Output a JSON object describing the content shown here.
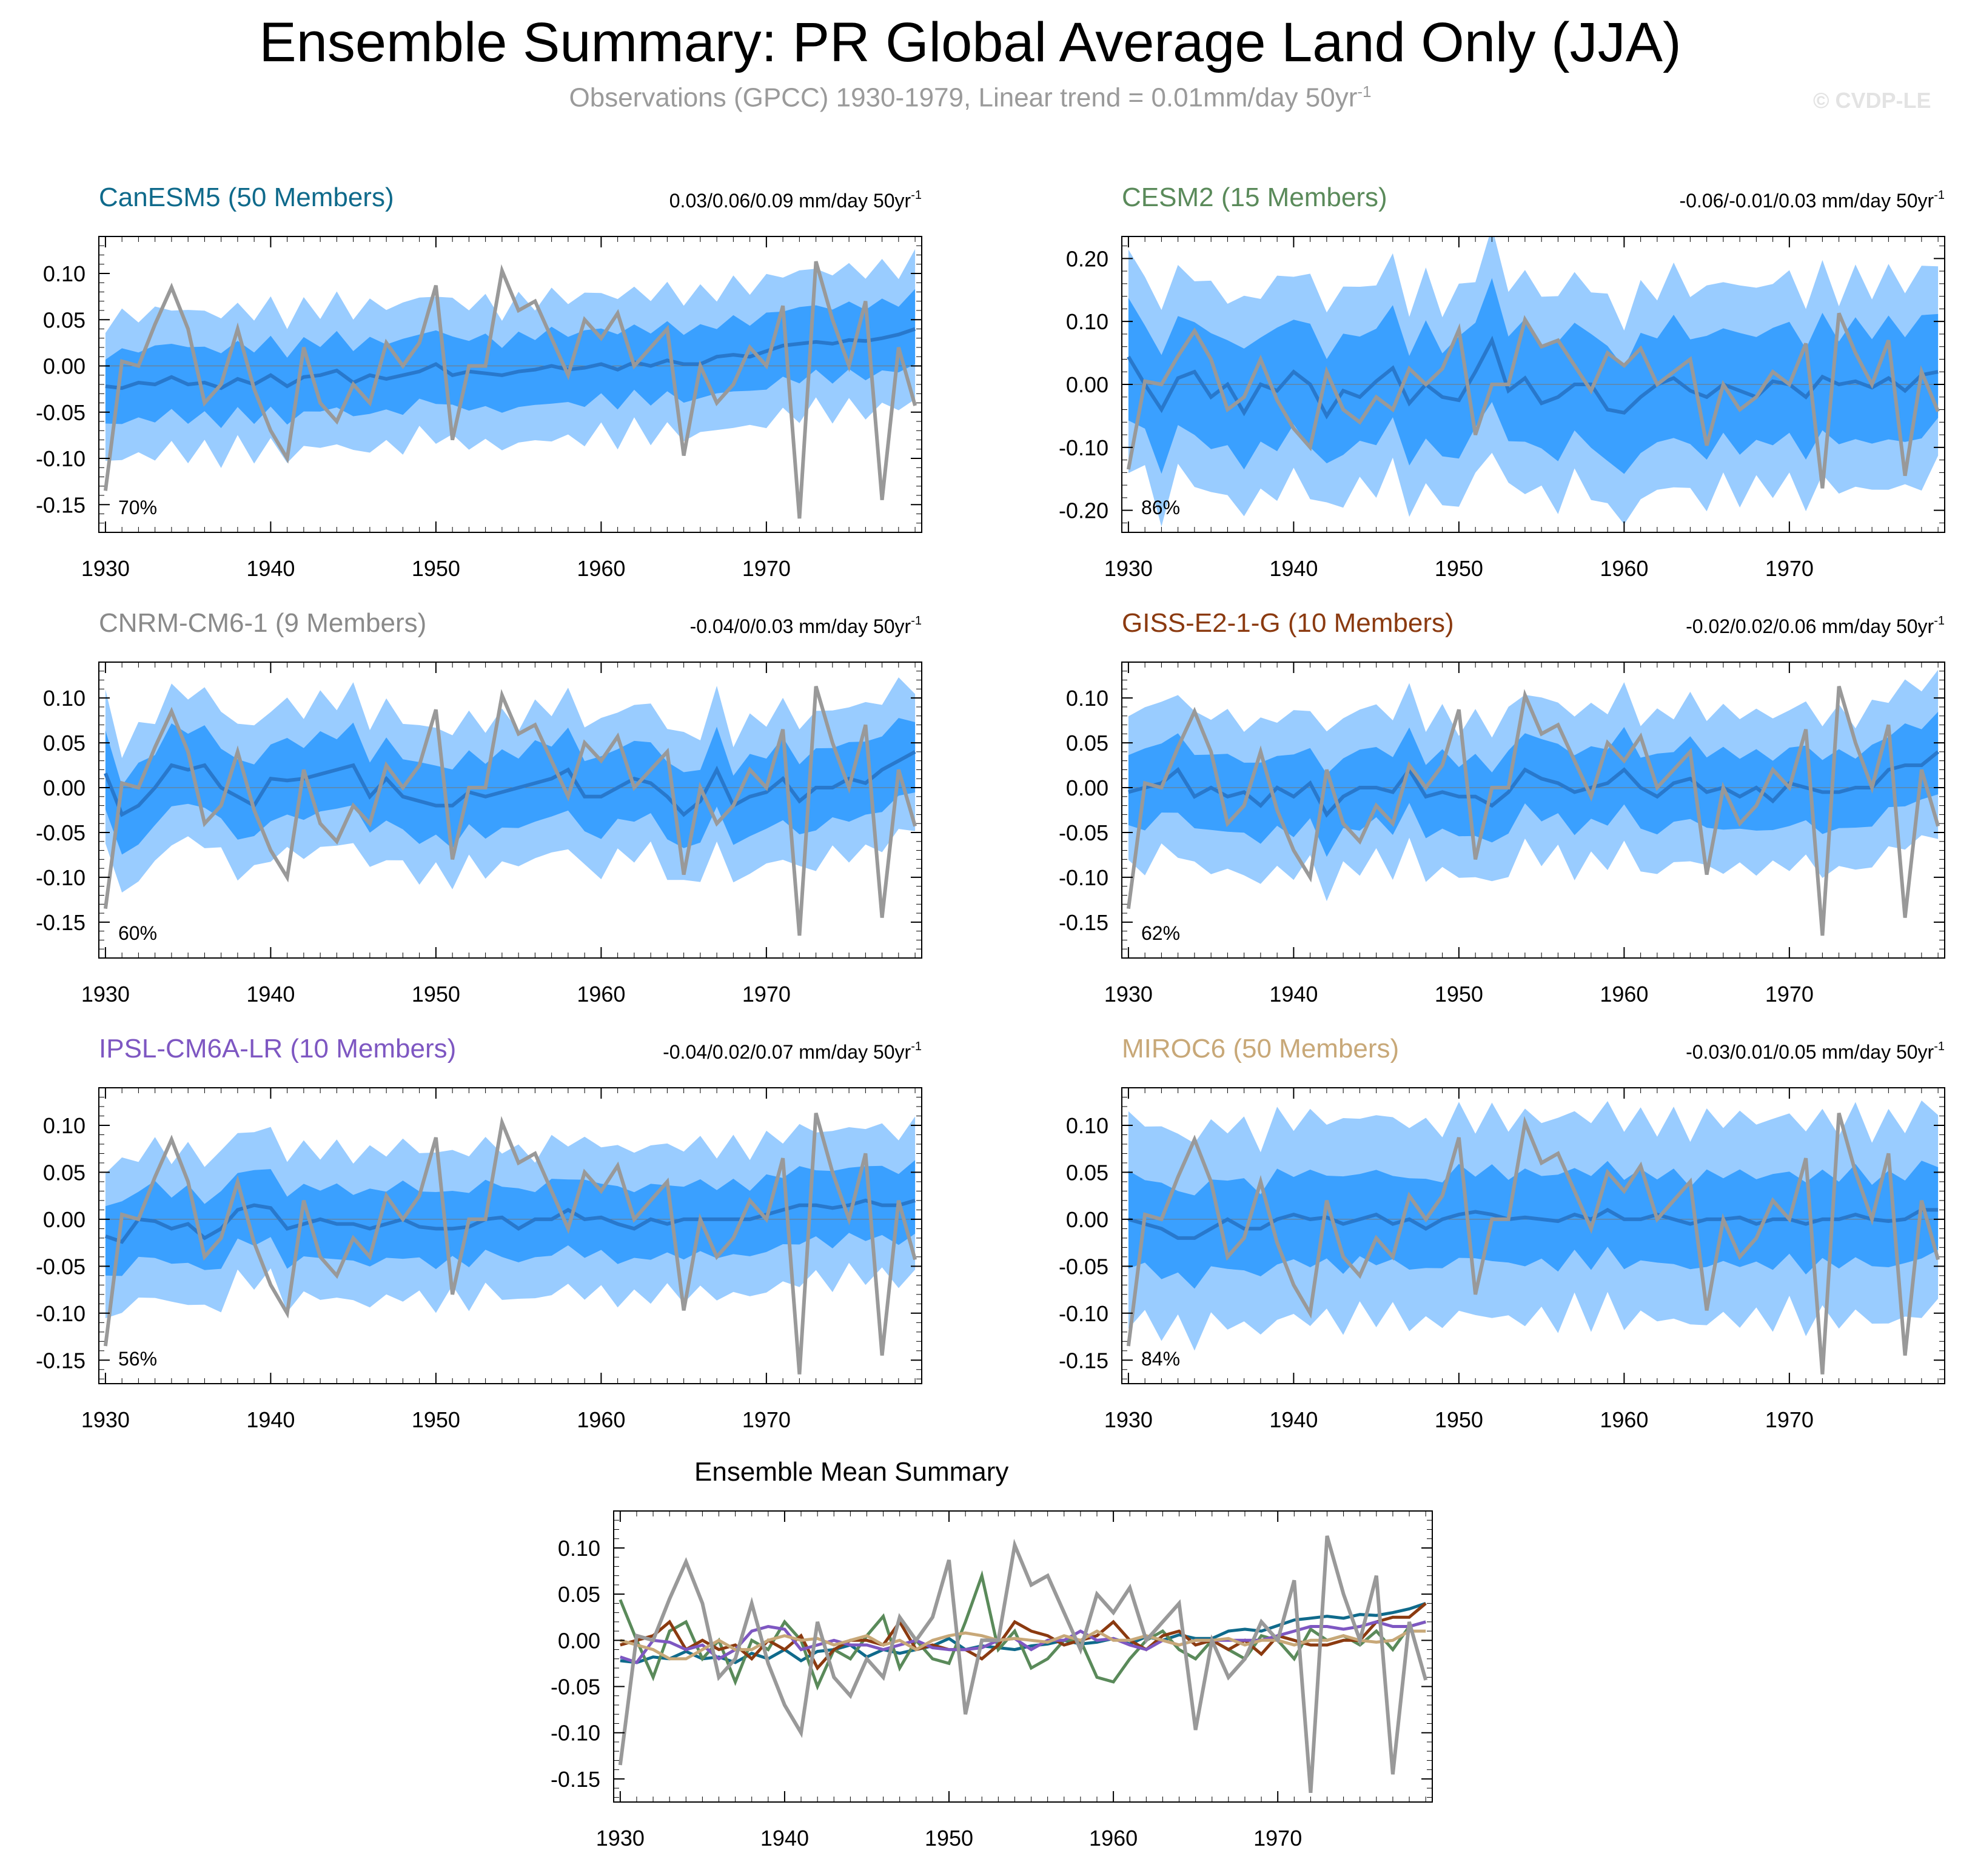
{
  "title": "Ensemble Summary: PR Global Average Land Only (JJA)",
  "subtitle": "Observations (GPCC) 1930-1979, Linear trend = 0.01mm/day 50yr",
  "subtitle_sup": "-1",
  "copyright": "© CVDP-LE",
  "colors": {
    "outer_band": "#99ccff",
    "inner_band": "#3aa0ff",
    "ensemble_mean": "#2878cc",
    "observations": "#999999"
  },
  "years": [
    1930,
    1931,
    1932,
    1933,
    1934,
    1935,
    1936,
    1937,
    1938,
    1939,
    1940,
    1941,
    1942,
    1943,
    1944,
    1945,
    1946,
    1947,
    1948,
    1949,
    1950,
    1951,
    1952,
    1953,
    1954,
    1955,
    1956,
    1957,
    1958,
    1959,
    1960,
    1961,
    1962,
    1963,
    1964,
    1965,
    1966,
    1967,
    1968,
    1969,
    1970,
    1971,
    1972,
    1973,
    1974,
    1975,
    1976,
    1977,
    1978,
    1979
  ],
  "observations": [
    -0.135,
    0.005,
    0.0,
    0.045,
    0.085,
    0.04,
    -0.04,
    -0.02,
    0.04,
    -0.025,
    -0.07,
    -0.1,
    0.02,
    -0.04,
    -0.06,
    -0.02,
    -0.04,
    0.025,
    0.0,
    0.025,
    0.087,
    -0.08,
    0.0,
    0.0,
    0.103,
    0.06,
    0.07,
    0.03,
    -0.01,
    0.05,
    0.03,
    0.057,
    0.0,
    0.02,
    0.04,
    -0.097,
    0.0,
    -0.04,
    -0.02,
    0.02,
    0.0,
    0.065,
    -0.165,
    0.113,
    0.05,
    0.0,
    0.07,
    -0.145,
    0.02,
    -0.043
  ],
  "chart_data": [
    {
      "type": "area",
      "title": "CanESM5 (50 Members)",
      "title_color": "#0f6a8b",
      "trend": "0.03/0.06/0.09 mm/day 50yr",
      "trend_sup": "-1",
      "percent": "70%",
      "ylim": [
        -0.18,
        0.14
      ],
      "yticks": [
        0.1,
        0.05,
        0.0,
        -0.05,
        -0.1,
        -0.15
      ],
      "ytick_labels": [
        "0.10",
        "0.05",
        "0.00",
        "-0.05",
        "-0.10",
        "-0.15"
      ],
      "xticks": [
        1930,
        1940,
        1950,
        1960,
        1970
      ],
      "xtick_labels": [
        "1930",
        "1940",
        "1950",
        "1960",
        "1970"
      ],
      "mean": [
        -0.022,
        -0.024,
        -0.018,
        -0.02,
        -0.012,
        -0.02,
        -0.018,
        -0.024,
        -0.014,
        -0.02,
        -0.01,
        -0.022,
        -0.012,
        -0.01,
        -0.005,
        -0.018,
        -0.01,
        -0.014,
        -0.01,
        -0.006,
        0.002,
        -0.01,
        -0.006,
        -0.008,
        -0.01,
        -0.006,
        -0.004,
        0.0,
        -0.004,
        -0.002,
        0.002,
        -0.004,
        0.004,
        0.0,
        0.006,
        0.002,
        0.002,
        0.01,
        0.012,
        0.01,
        0.016,
        0.022,
        0.024,
        0.026,
        0.024,
        0.028,
        0.027,
        0.03,
        0.034,
        0.04
      ],
      "inner": 0.036,
      "outer": 0.072
    },
    {
      "type": "area",
      "title": "CESM2 (15 Members)",
      "title_color": "#5a8a5a",
      "trend": "-0.06/-0.01/0.03 mm/day 50yr",
      "trend_sup": "-1",
      "percent": "86%",
      "ylim": [
        -0.235,
        0.235
      ],
      "yticks": [
        0.2,
        0.1,
        0.0,
        -0.1,
        -0.2
      ],
      "ytick_labels": [
        "0.20",
        "0.10",
        "0.00",
        "-0.10",
        "-0.20"
      ],
      "xticks": [
        1930,
        1940,
        1950,
        1960,
        1970
      ],
      "xtick_labels": [
        "1930",
        "1940",
        "1950",
        "1960",
        "1970"
      ],
      "mean": [
        0.044,
        0.0,
        -0.04,
        0.01,
        0.02,
        -0.02,
        0.0,
        -0.045,
        0.0,
        -0.01,
        0.02,
        0.0,
        -0.05,
        -0.01,
        -0.02,
        0.005,
        0.026,
        -0.03,
        0.0,
        -0.02,
        -0.025,
        0.02,
        0.07,
        -0.01,
        0.01,
        -0.03,
        -0.02,
        0.0,
        0.0,
        -0.04,
        -0.045,
        -0.02,
        0.0,
        0.01,
        -0.01,
        -0.02,
        0.0,
        -0.01,
        -0.02,
        0.005,
        0.0,
        -0.02,
        0.012,
        0.0,
        0.005,
        -0.005,
        0.01,
        -0.01,
        0.015,
        0.02
      ],
      "inner": 0.085,
      "outer": 0.155
    },
    {
      "type": "area",
      "title": "CNRM-CM6-1 (9 Members)",
      "title_color": "#8a8a8a",
      "trend": "-0.04/0/0.03 mm/day 50yr",
      "trend_sup": "-1",
      "percent": "60%",
      "ylim": [
        -0.19,
        0.14
      ],
      "yticks": [
        0.1,
        0.05,
        0.0,
        -0.05,
        -0.1,
        -0.15
      ],
      "ytick_labels": [
        "0.10",
        "0.05",
        "0.00",
        "-0.05",
        "-0.10",
        "-0.15"
      ],
      "xticks": [
        1930,
        1940,
        1950,
        1960,
        1970
      ],
      "xtick_labels": [
        "1930",
        "1940",
        "1950",
        "1960",
        "1970"
      ],
      "mean": [
        0.016,
        -0.03,
        -0.02,
        0.0,
        0.025,
        0.02,
        0.025,
        0.0,
        -0.01,
        -0.02,
        0.01,
        0.008,
        0.01,
        0.015,
        0.02,
        0.025,
        -0.01,
        0.01,
        -0.01,
        -0.015,
        -0.02,
        -0.02,
        -0.005,
        -0.01,
        -0.005,
        0.0,
        0.005,
        0.01,
        0.02,
        -0.01,
        -0.01,
        0.0,
        0.01,
        0.005,
        -0.01,
        -0.03,
        -0.015,
        0.02,
        -0.02,
        -0.01,
        -0.005,
        0.01,
        -0.015,
        0.0,
        0.0,
        0.01,
        0.005,
        0.02,
        0.03,
        0.04
      ],
      "inner": 0.04,
      "outer": 0.078
    },
    {
      "type": "area",
      "title": "GISS-E2-1-G (10 Members)",
      "title_color": "#8b3a10",
      "trend": "-0.02/0.02/0.06 mm/day 50yr",
      "trend_sup": "-1",
      "percent": "62%",
      "ylim": [
        -0.19,
        0.14
      ],
      "yticks": [
        0.1,
        0.05,
        0.0,
        -0.05,
        -0.1,
        -0.15
      ],
      "ytick_labels": [
        "0.10",
        "0.05",
        "0.00",
        "-0.05",
        "-0.10",
        "-0.15"
      ],
      "xticks": [
        1930,
        1940,
        1950,
        1960,
        1970
      ],
      "xtick_labels": [
        "1930",
        "1940",
        "1950",
        "1960",
        "1970"
      ],
      "mean": [
        -0.005,
        0.0,
        0.005,
        0.02,
        -0.01,
        0.0,
        -0.01,
        -0.005,
        -0.02,
        0.0,
        -0.01,
        0.005,
        -0.03,
        -0.01,
        0.0,
        0.0,
        -0.005,
        0.02,
        -0.01,
        -0.005,
        -0.01,
        -0.01,
        -0.02,
        -0.005,
        0.02,
        0.01,
        0.005,
        -0.005,
        0.0,
        0.005,
        0.02,
        0.0,
        -0.01,
        0.005,
        0.01,
        -0.005,
        0.0,
        -0.01,
        0.0,
        -0.015,
        0.005,
        0.0,
        -0.005,
        -0.005,
        0.0,
        0.0,
        0.02,
        0.025,
        0.025,
        0.04
      ],
      "inner": 0.04,
      "outer": 0.082
    },
    {
      "type": "area",
      "title": "IPSL-CM6A-LR (10 Members)",
      "title_color": "#7e57c2",
      "trend": "-0.04/0.02/0.07 mm/day 50yr",
      "trend_sup": "-1",
      "percent": "56%",
      "ylim": [
        -0.175,
        0.14
      ],
      "yticks": [
        0.1,
        0.05,
        0.0,
        -0.05,
        -0.1,
        -0.15
      ],
      "ytick_labels": [
        "0.10",
        "0.05",
        "0.00",
        "-0.05",
        "-0.10",
        "-0.15"
      ],
      "xticks": [
        1930,
        1940,
        1950,
        1960,
        1970
      ],
      "xtick_labels": [
        "1930",
        "1940",
        "1950",
        "1960",
        "1970"
      ],
      "mean": [
        -0.018,
        -0.024,
        0.0,
        -0.002,
        -0.01,
        -0.005,
        -0.02,
        -0.01,
        0.01,
        0.015,
        0.012,
        -0.01,
        -0.005,
        0.0,
        -0.005,
        -0.005,
        -0.01,
        -0.005,
        0.0,
        -0.008,
        -0.01,
        -0.01,
        -0.008,
        0.0,
        0.002,
        -0.01,
        0.0,
        0.0,
        0.01,
        0.0,
        0.002,
        -0.005,
        -0.01,
        0.0,
        -0.005,
        0.0,
        0.0,
        0.0,
        0.0,
        0.0,
        0.005,
        0.01,
        0.015,
        0.015,
        0.012,
        0.015,
        0.02,
        0.015,
        0.015,
        0.02
      ],
      "inner": 0.036,
      "outer": 0.075
    },
    {
      "type": "area",
      "title": "MIROC6 (50 Members)",
      "title_color": "#c8a878",
      "trend": "-0.03/0.01/0.05 mm/day 50yr",
      "trend_sup": "-1",
      "percent": "84%",
      "ylim": [
        -0.175,
        0.14
      ],
      "yticks": [
        0.1,
        0.05,
        0.0,
        -0.05,
        -0.1,
        -0.15
      ],
      "ytick_labels": [
        "0.10",
        "0.05",
        "0.00",
        "-0.05",
        "-0.10",
        "-0.15"
      ],
      "xticks": [
        1930,
        1940,
        1950,
        1960,
        1970
      ],
      "xtick_labels": [
        "1930",
        "1940",
        "1950",
        "1960",
        "1970"
      ],
      "mean": [
        0.0,
        -0.005,
        -0.01,
        -0.02,
        -0.02,
        -0.01,
        0.0,
        -0.01,
        -0.01,
        0.0,
        0.005,
        0.0,
        0.002,
        -0.005,
        0.0,
        0.005,
        -0.005,
        0.0,
        -0.01,
        0.0,
        0.005,
        0.008,
        0.005,
        0.0,
        0.002,
        0.0,
        -0.002,
        0.005,
        0.0,
        0.01,
        0.0,
        0.0,
        0.005,
        0.0,
        -0.005,
        0.0,
        0.0,
        0.002,
        -0.005,
        0.0,
        0.0,
        -0.005,
        0.0,
        0.0,
        0.005,
        0.0,
        -0.002,
        0.0,
        0.01,
        0.01
      ],
      "inner": 0.045,
      "outer": 0.1
    },
    {
      "type": "line",
      "title": "Ensemble Mean Summary",
      "title_color": "#000000",
      "ylim": [
        -0.175,
        0.14
      ],
      "yticks": [
        0.1,
        0.05,
        0.0,
        -0.05,
        -0.1,
        -0.15
      ],
      "ytick_labels": [
        "0.10",
        "0.05",
        "0.00",
        "-0.05",
        "-0.10",
        "-0.15"
      ],
      "xticks": [
        1930,
        1940,
        1950,
        1960,
        1970
      ],
      "xtick_labels": [
        "1930",
        "1940",
        "1950",
        "1960",
        "1970"
      ],
      "series_colors": [
        "#0f6a8b",
        "#5a8a5a",
        "#8b3a10",
        "#7e57c2",
        "#c8a878"
      ],
      "series_sources": [
        0,
        1,
        3,
        4,
        5
      ]
    }
  ]
}
